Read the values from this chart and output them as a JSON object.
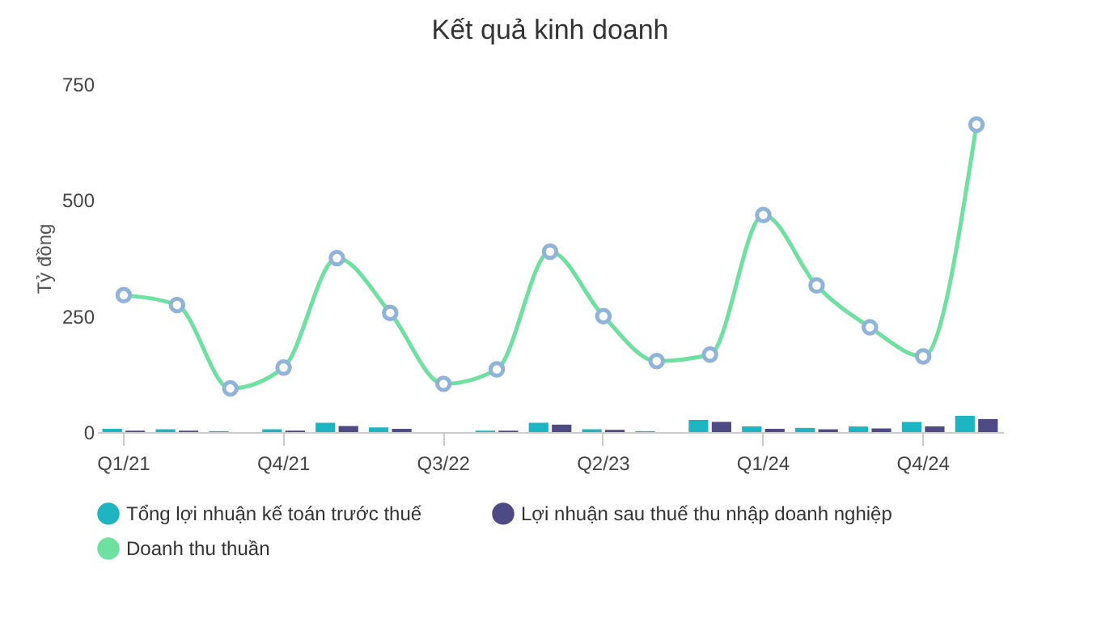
{
  "chart_data": {
    "type": "bar",
    "title": "Kết quả kinh doanh",
    "ylabel": "Tỷ đồng",
    "categories": [
      "Q1/21",
      null,
      null,
      "Q4/21",
      null,
      null,
      "Q3/22",
      null,
      null,
      "Q2/23",
      null,
      null,
      "Q1/24",
      null,
      null,
      "Q4/24",
      null
    ],
    "series": [
      {
        "name": "Tổng lợi nhuận kế toán trước thuế",
        "color": "#1cb5c1",
        "values": [
          7,
          6,
          2,
          6,
          20,
          10,
          0,
          3,
          20,
          6,
          2,
          26,
          12,
          9,
          12,
          22,
          35
        ]
      },
      {
        "name": "Lợi nhuận sau thuế thu nhập doanh nghiệp",
        "color": "#4e4a84",
        "values": [
          3,
          3,
          0,
          3,
          13,
          7,
          0,
          3,
          16,
          5,
          0,
          22,
          7,
          6,
          8,
          12,
          28
        ]
      },
      {
        "name": "Doanh thu thuần",
        "type": "line",
        "color": "#6ee0a0",
        "values": [
          295,
          274,
          94,
          139,
          375,
          257,
          104,
          135,
          389,
          250,
          153,
          167,
          468,
          316,
          226,
          163,
          663
        ]
      }
    ],
    "ylim": [
      0,
      750
    ],
    "yticks": [
      0,
      250,
      500,
      750
    ],
    "grid": false,
    "legend": "bottom",
    "marker": "circle"
  }
}
